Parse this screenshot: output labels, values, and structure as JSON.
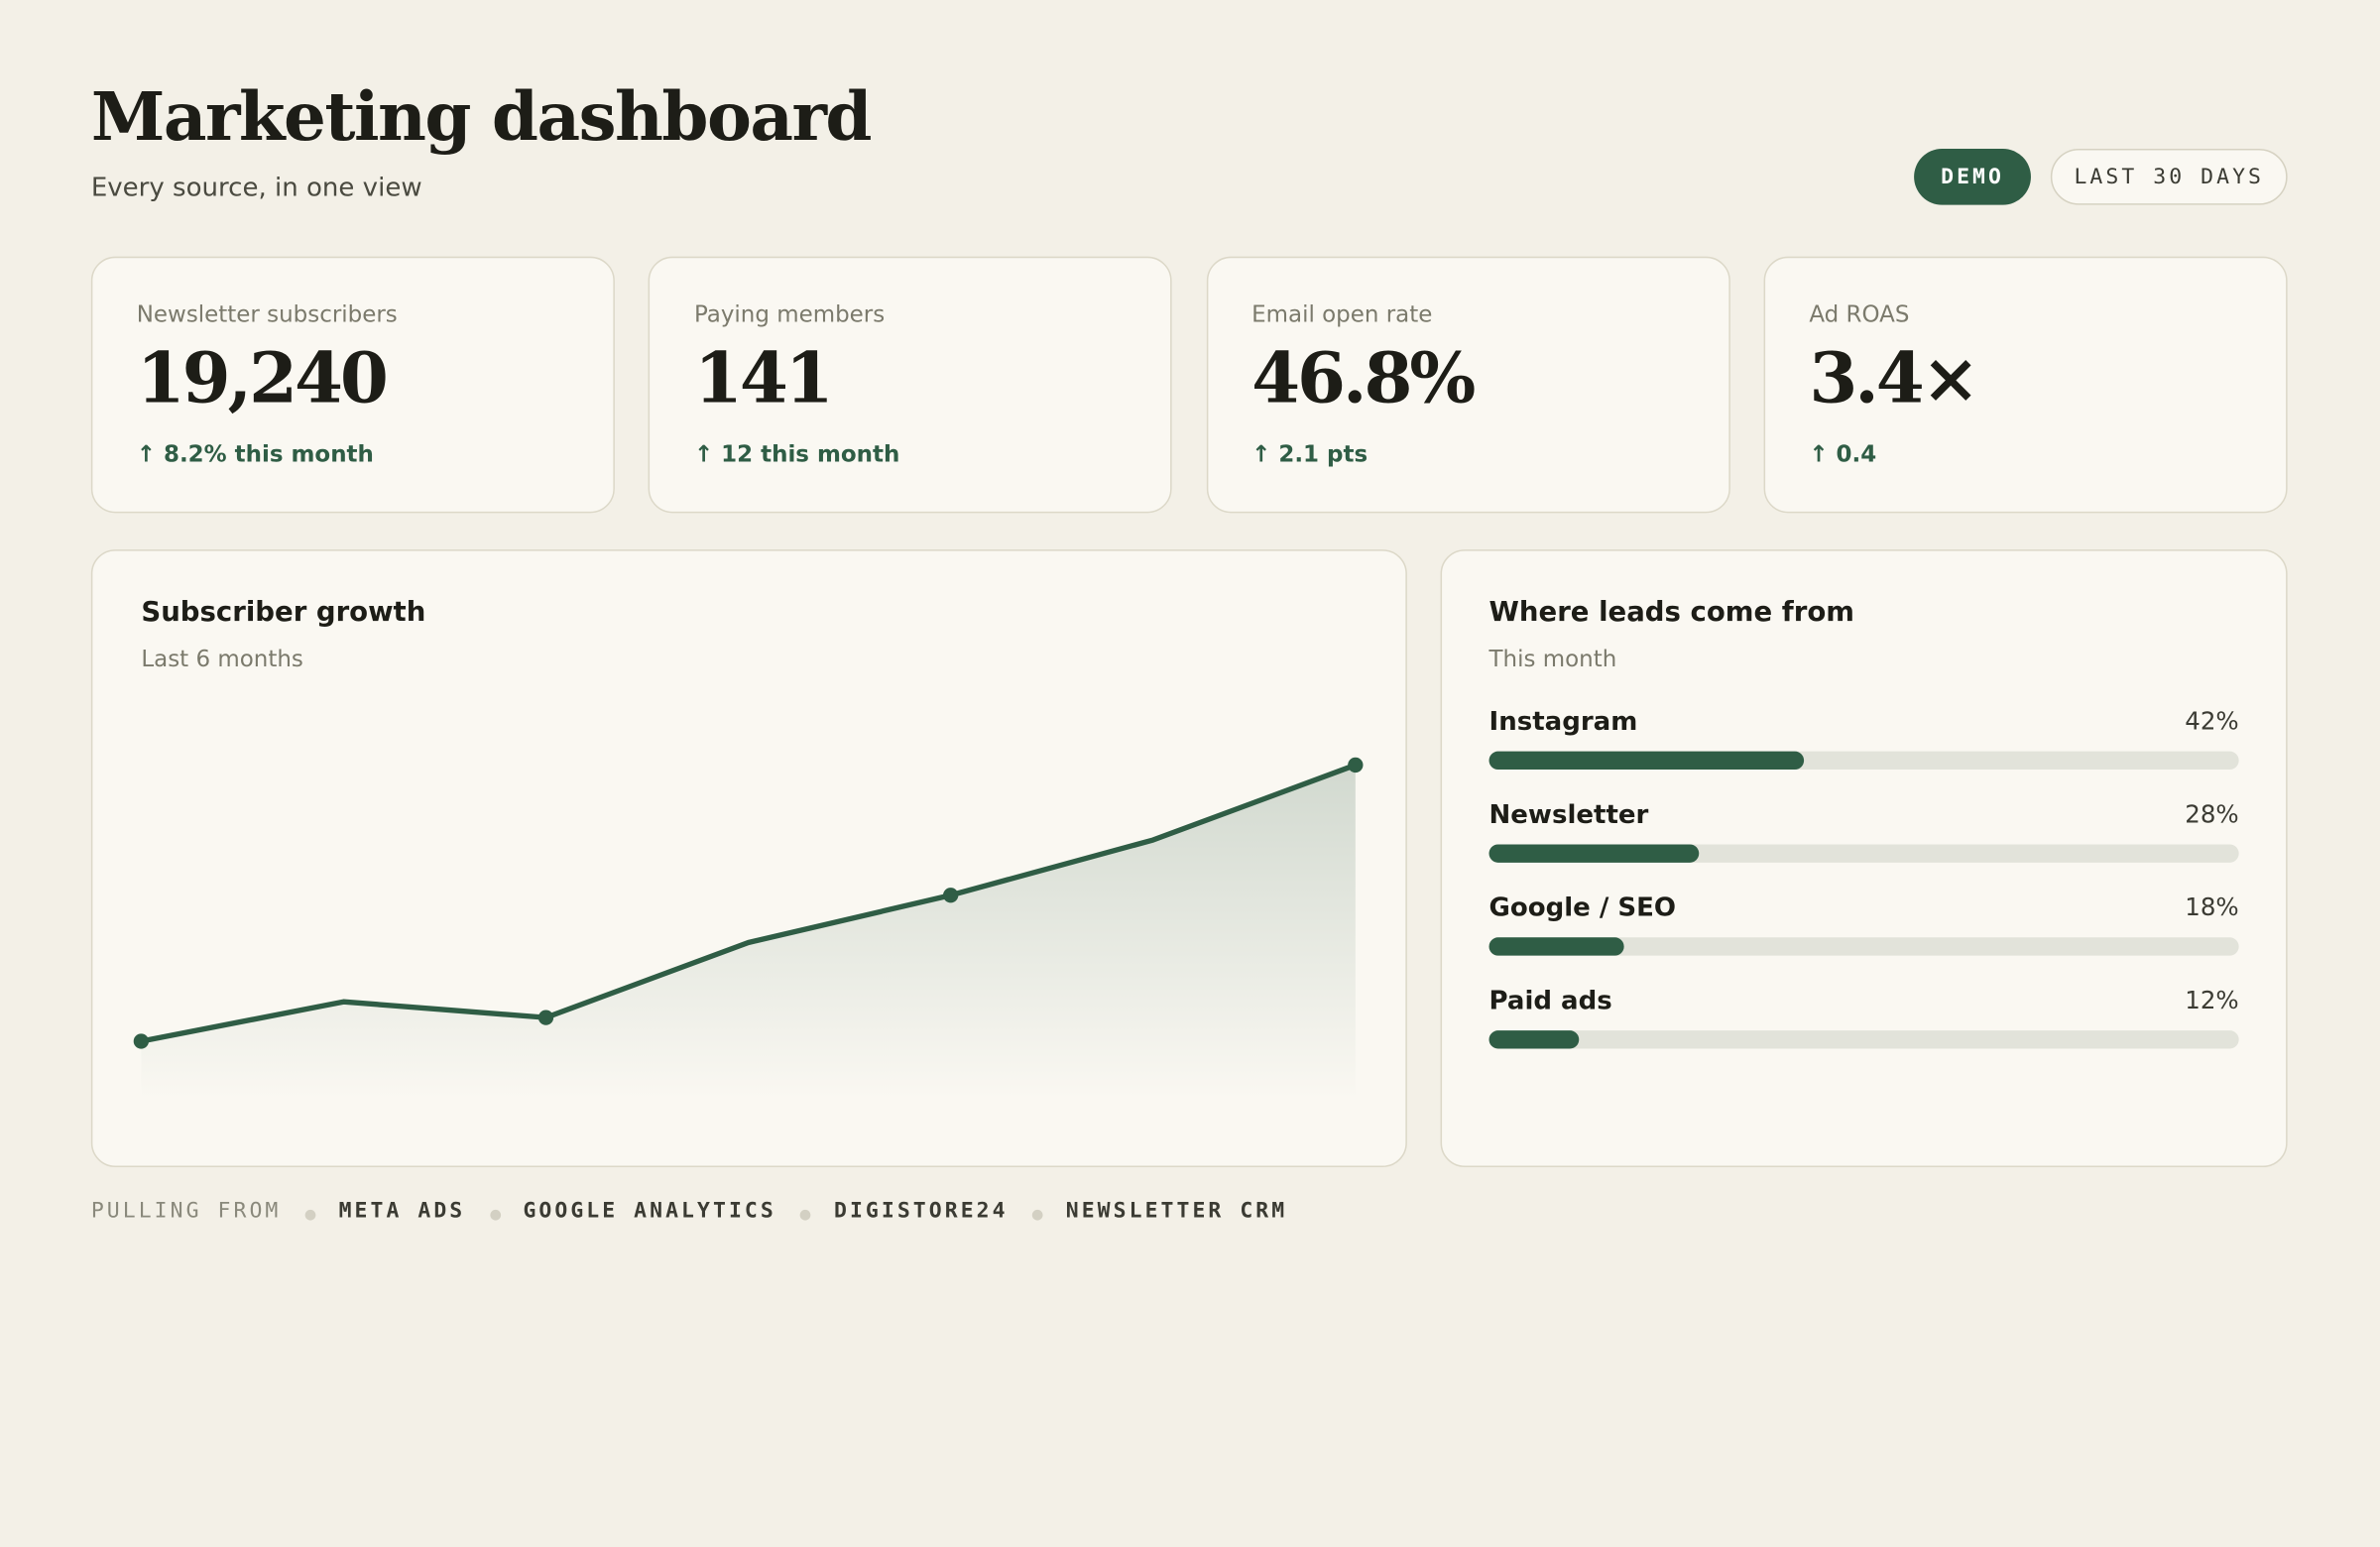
{
  "header": {
    "title": "Marketing dashboard",
    "subtitle": "Every source, in one view",
    "badges": [
      "DEMO",
      "LAST 30 DAYS"
    ]
  },
  "kpis": [
    {
      "label": "Newsletter subscribers",
      "value": "19,240",
      "change": "↑ 8.2% this month"
    },
    {
      "label": "Paying members",
      "value": "141",
      "change": "↑ 12 this month"
    },
    {
      "label": "Email open rate",
      "value": "46.8%",
      "change": "↑ 2.1 pts"
    },
    {
      "label": "Ad ROAS",
      "value": "3.4×",
      "change": "↑ 0.4"
    }
  ],
  "chart_data": [
    {
      "type": "area",
      "title": "Subscriber growth",
      "subtitle": "Last 6 months",
      "values": [
        15,
        25,
        21,
        40,
        52,
        66,
        85
      ],
      "ylim": [
        0,
        100
      ],
      "color": "#2f5d45"
    },
    {
      "type": "bar",
      "title": "Where leads come from",
      "subtitle": "This month",
      "categories": [
        "Instagram",
        "Newsletter",
        "Google / SEO",
        "Paid ads"
      ],
      "values": [
        42,
        28,
        18,
        12
      ],
      "value_labels": [
        "42%",
        "28%",
        "18%",
        "12%"
      ],
      "xlim": [
        0,
        100
      ],
      "color": "#2f5d45"
    }
  ],
  "footer": {
    "label": "PULLING FROM",
    "sources": [
      "META ADS",
      "GOOGLE ANALYTICS",
      "DIGISTORE24",
      "NEWSLETTER CRM"
    ]
  }
}
